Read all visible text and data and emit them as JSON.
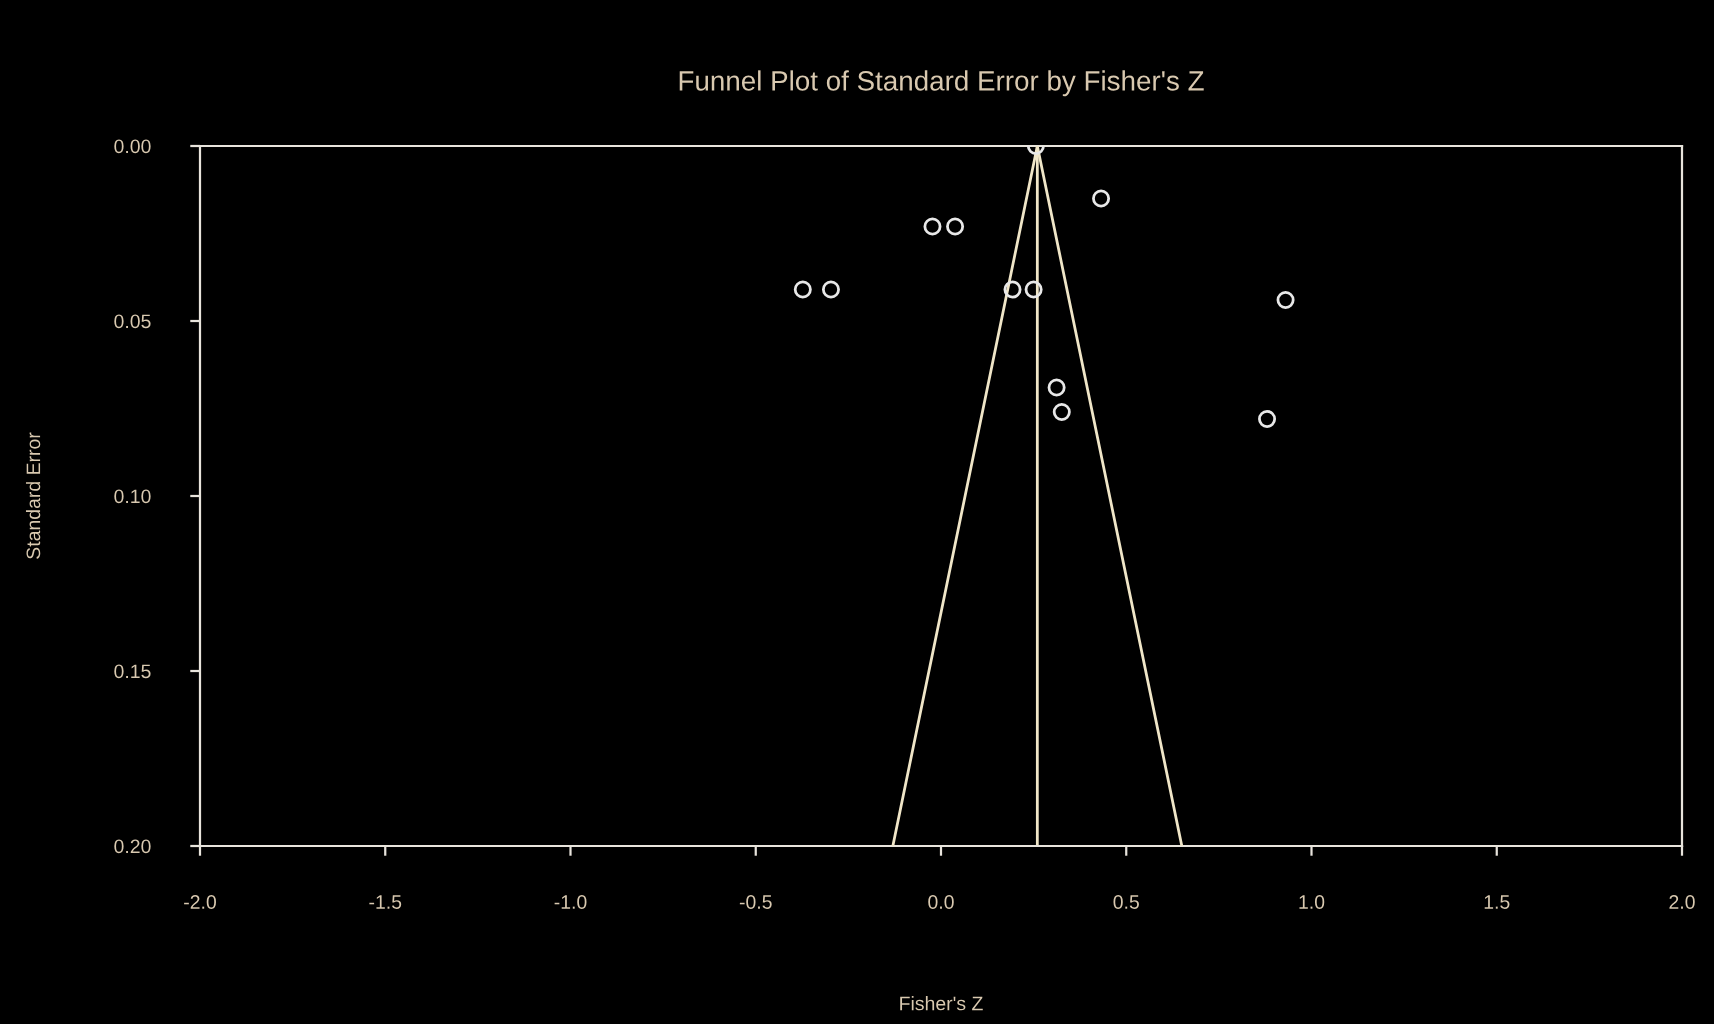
{
  "chart_data": {
    "type": "scatter",
    "title": "Funnel Plot of Standard Error by Fisher's Z",
    "xlabel": "Fisher's Z",
    "ylabel": "Standard Error",
    "xlim": [
      -2.0,
      2.0
    ],
    "xticks": [
      {
        "value": -2.0,
        "label": "-2.0"
      },
      {
        "value": -1.5,
        "label": "-1.5"
      },
      {
        "value": -1.0,
        "label": "-1.0"
      },
      {
        "value": -0.5,
        "label": "-0.5"
      },
      {
        "value": 0.0,
        "label": "0.0"
      },
      {
        "value": 0.5,
        "label": "0.5"
      },
      {
        "value": 1.0,
        "label": "1.0"
      },
      {
        "value": 1.5,
        "label": "1.5"
      },
      {
        "value": 2.0,
        "label": "2.0"
      }
    ],
    "ylim": [
      0.2,
      0.0
    ],
    "yticks": [
      {
        "value": 0.0,
        "label": "0.00"
      },
      {
        "value": 0.05,
        "label": "0.05"
      },
      {
        "value": 0.1,
        "label": "0.10"
      },
      {
        "value": 0.15,
        "label": "0.15"
      },
      {
        "value": 0.2,
        "label": "0.20"
      }
    ],
    "grid": false,
    "marker": "circle",
    "series": [
      {
        "color": "#e8e8e8",
        "x": [
          0.256,
          -0.023,
          0.038,
          -0.373,
          -0.297,
          0.193,
          0.25,
          0.93,
          0.312,
          0.326,
          0.88,
          0.432
        ],
        "values": [
          0.0,
          0.023,
          0.023,
          0.041,
          0.041,
          0.041,
          0.041,
          0.044,
          0.069,
          0.076,
          0.078,
          0.015
        ]
      },
      {
        "type": "line",
        "color": "#f0e6c8",
        "marker": "none",
        "x": [
          -0.13,
          0.26,
          0.65
        ],
        "values": [
          0.2,
          0.0,
          0.2
        ]
      }
    ],
    "ref_lines": [
      {
        "axis": "x",
        "value": 0.26,
        "color": "#f0e6c8"
      }
    ]
  }
}
